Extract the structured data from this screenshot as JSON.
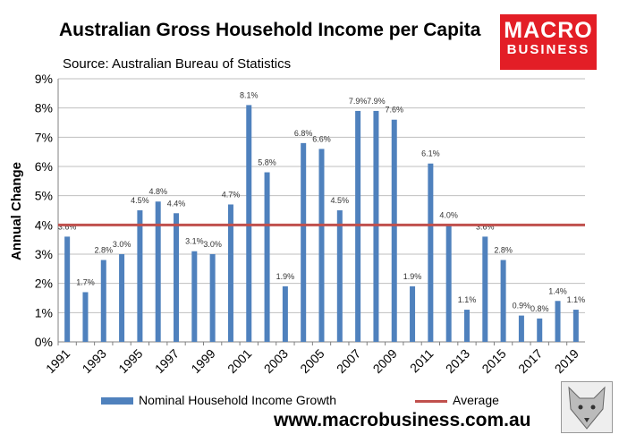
{
  "title": "Australian Gross Household Income per Capita",
  "subtitle": "Source: Australian Bureau of Statistics",
  "logo": {
    "line1": "MACRO",
    "line2": "BUSINESS"
  },
  "url": "www.macrobusiness.com.au",
  "colors": {
    "bar": "#4f81bd",
    "average": "#c0504d",
    "logo_bg": "#e31e26"
  },
  "chart_data": {
    "type": "bar",
    "ylabel": "Annual Change",
    "ylim": [
      0,
      9
    ],
    "ytick_labels": [
      "0%",
      "1%",
      "2%",
      "3%",
      "4%",
      "5%",
      "6%",
      "7%",
      "8%",
      "9%"
    ],
    "xtick_labels": [
      "1991",
      "1993",
      "1995",
      "1997",
      "1999",
      "2001",
      "2003",
      "2005",
      "2007",
      "2009",
      "2011",
      "2013",
      "2015",
      "2017",
      "2019"
    ],
    "categories": [
      "1991",
      "1992",
      "1993",
      "1994",
      "1995",
      "1996",
      "1997",
      "1998",
      "1999",
      "2000",
      "2001",
      "2002",
      "2003",
      "2004",
      "2005",
      "2006",
      "2007",
      "2008",
      "2009",
      "2010",
      "2011",
      "2012",
      "2013",
      "2014",
      "2015",
      "2016",
      "2017",
      "2018",
      "2019"
    ],
    "series": [
      {
        "name": "Nominal Household Income Growth",
        "values": [
          3.6,
          1.7,
          2.8,
          3.0,
          4.5,
          4.8,
          4.4,
          3.1,
          3.0,
          4.7,
          8.1,
          5.8,
          1.9,
          6.8,
          6.6,
          4.5,
          7.9,
          7.9,
          7.6,
          1.9,
          6.1,
          4.0,
          1.1,
          3.6,
          2.8,
          0.9,
          0.8,
          1.4,
          1.1
        ],
        "labels": [
          "3.6%",
          "1.7%",
          "2.8%",
          "3.0%",
          "4.5%",
          "4.8%",
          "4.4%",
          "3.1%",
          "3.0%",
          "4.7%",
          "8.1%",
          "5.8%",
          "1.9%",
          "6.8%",
          "6.6%",
          "4.5%",
          "7.9%",
          "7.9%",
          "7.6%",
          "1.9%",
          "6.1%",
          "4.0%",
          "1.1%",
          "3.6%",
          "2.8%",
          "0.9%",
          "0.8%",
          "1.4%",
          "1.1%"
        ]
      },
      {
        "name": "Average",
        "value": 4.0
      }
    ],
    "grid": true,
    "legend": "bottom"
  }
}
